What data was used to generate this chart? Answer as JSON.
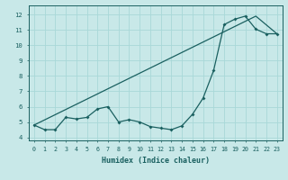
{
  "xlabel": "Humidex (Indice chaleur)",
  "background_color": "#c8e8e8",
  "grid_color": "#a8d8d8",
  "line_color": "#1a6060",
  "xlim": [
    -0.5,
    23.5
  ],
  "ylim": [
    3.8,
    12.6
  ],
  "yticks": [
    4,
    5,
    6,
    7,
    8,
    9,
    10,
    11,
    12
  ],
  "xticks": [
    0,
    1,
    2,
    3,
    4,
    5,
    6,
    7,
    8,
    9,
    10,
    11,
    12,
    13,
    14,
    15,
    16,
    17,
    18,
    19,
    20,
    21,
    22,
    23
  ],
  "curve_x": [
    0,
    1,
    2,
    3,
    4,
    5,
    6,
    7,
    8,
    9,
    10,
    11,
    12,
    13,
    14,
    15,
    16,
    17,
    18,
    19,
    20,
    21,
    22,
    23
  ],
  "curve_y": [
    4.8,
    4.5,
    4.5,
    5.3,
    5.2,
    5.3,
    5.85,
    6.0,
    5.0,
    5.15,
    5.0,
    4.7,
    4.6,
    4.5,
    4.75,
    5.5,
    6.55,
    8.35,
    11.35,
    11.7,
    11.9,
    11.05,
    10.75,
    10.75
  ],
  "line_x": [
    0,
    21,
    23
  ],
  "line_y": [
    4.8,
    11.9,
    10.75
  ]
}
